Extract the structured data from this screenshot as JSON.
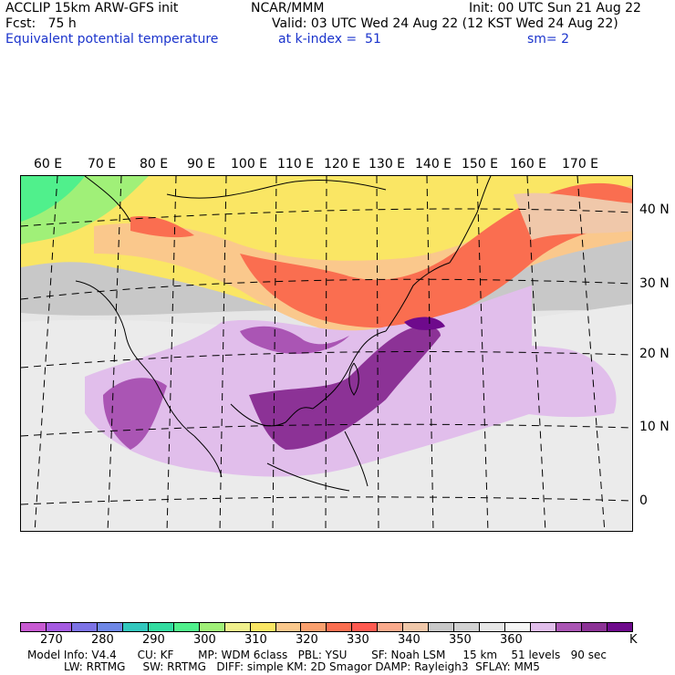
{
  "header": {
    "model": "ACCLIP 15km ARW-GFS init",
    "center": "NCAR/MMM",
    "init": "Init: 00 UTC Sun 21 Aug 22",
    "fcst": "Fcst:   75 h",
    "valid": "Valid: 03 UTC Wed 24 Aug 22 (12 KST Wed 24 Aug 22)",
    "field": "Equivalent potential temperature",
    "level": "at k-index =  51",
    "smooth": "sm= 2"
  },
  "map": {
    "lon_labels": [
      "60 E",
      "70 E",
      "80 E",
      "90 E",
      "100 E",
      "110 E",
      "120 E",
      "130 E",
      "140 E",
      "150 E",
      "160 E",
      "170 E"
    ],
    "lat_labels": [
      "40 N",
      "30 N",
      "20 N",
      "10 N",
      "0"
    ]
  },
  "colorbar": {
    "colors": [
      "#c85ad2",
      "#a55ae1",
      "#7d73e6",
      "#6e87e6",
      "#32c8be",
      "#32dca0",
      "#50f08c",
      "#a0f078",
      "#f0f08c",
      "#fae664",
      "#fac88c",
      "#faa06e",
      "#fa6e50",
      "#ff5a50",
      "#faaa8c",
      "#f0c8aa",
      "#c8c8c8",
      "#d2d2d2",
      "#e6e6e6",
      "#f5f5f5",
      "#e1beeb",
      "#aa55b4",
      "#8c3296",
      "#6e0a8c"
    ],
    "tick_labels": [
      "270",
      "280",
      "290",
      "300",
      "310",
      "320",
      "330",
      "340",
      "350",
      "360"
    ],
    "unit": "K"
  },
  "footer": {
    "line1": "Model Info: V4.4      CU: KF       MP: WDM 6class   PBL: YSU       SF: Noah LSM     15 km    51 levels   90 sec",
    "line2": "LW: RRTMG     SW: RRTMG   DIFF: simple KM: 2D Smagor DAMP: Rayleigh3  SFLAY: MM5"
  }
}
